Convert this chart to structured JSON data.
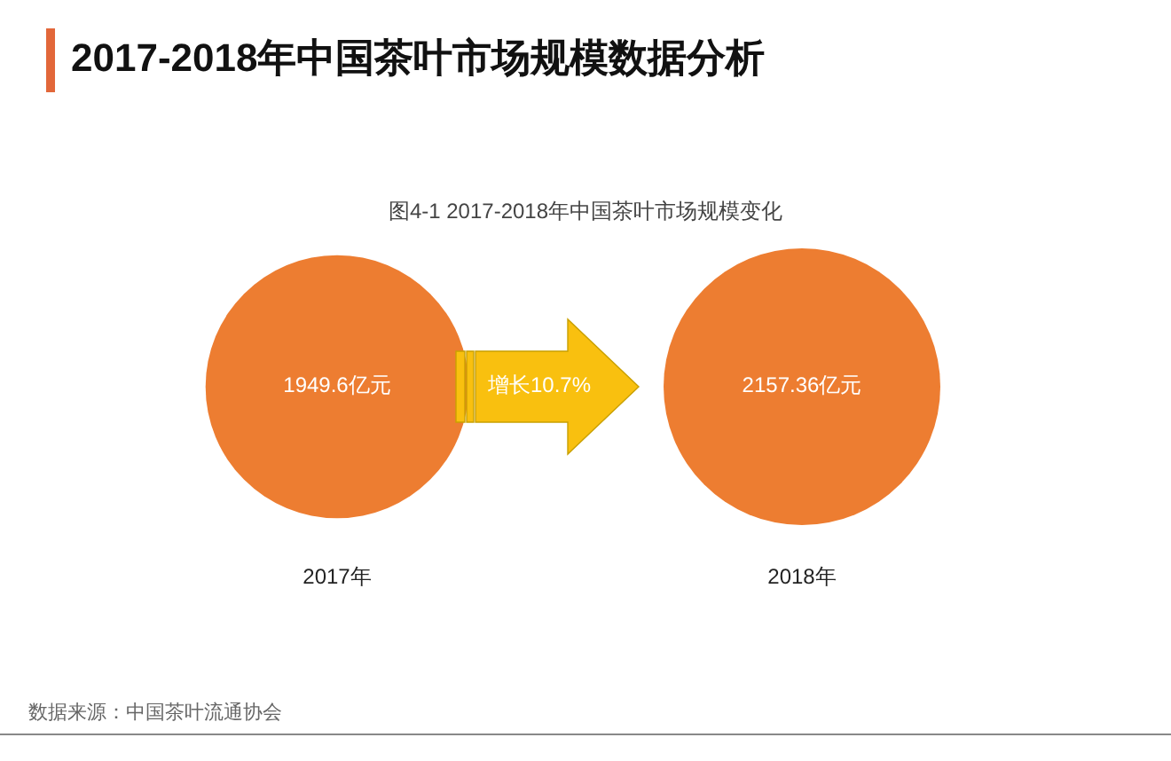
{
  "chart_data": {
    "type": "other",
    "title": "2017-2018年中国茶叶市场规模数据分析",
    "subtitle": "图4-1 2017-2018年中国茶叶市场规模变化",
    "categories": [
      "2017年",
      "2018年"
    ],
    "values": [
      1949.6,
      2157.36
    ],
    "value_labels": [
      "1949.6亿元",
      "2157.36亿元"
    ],
    "color": "#ed7d31",
    "annotations": [
      "增长10.7%",
      "数据来源：中国茶叶流通协会"
    ]
  }
}
